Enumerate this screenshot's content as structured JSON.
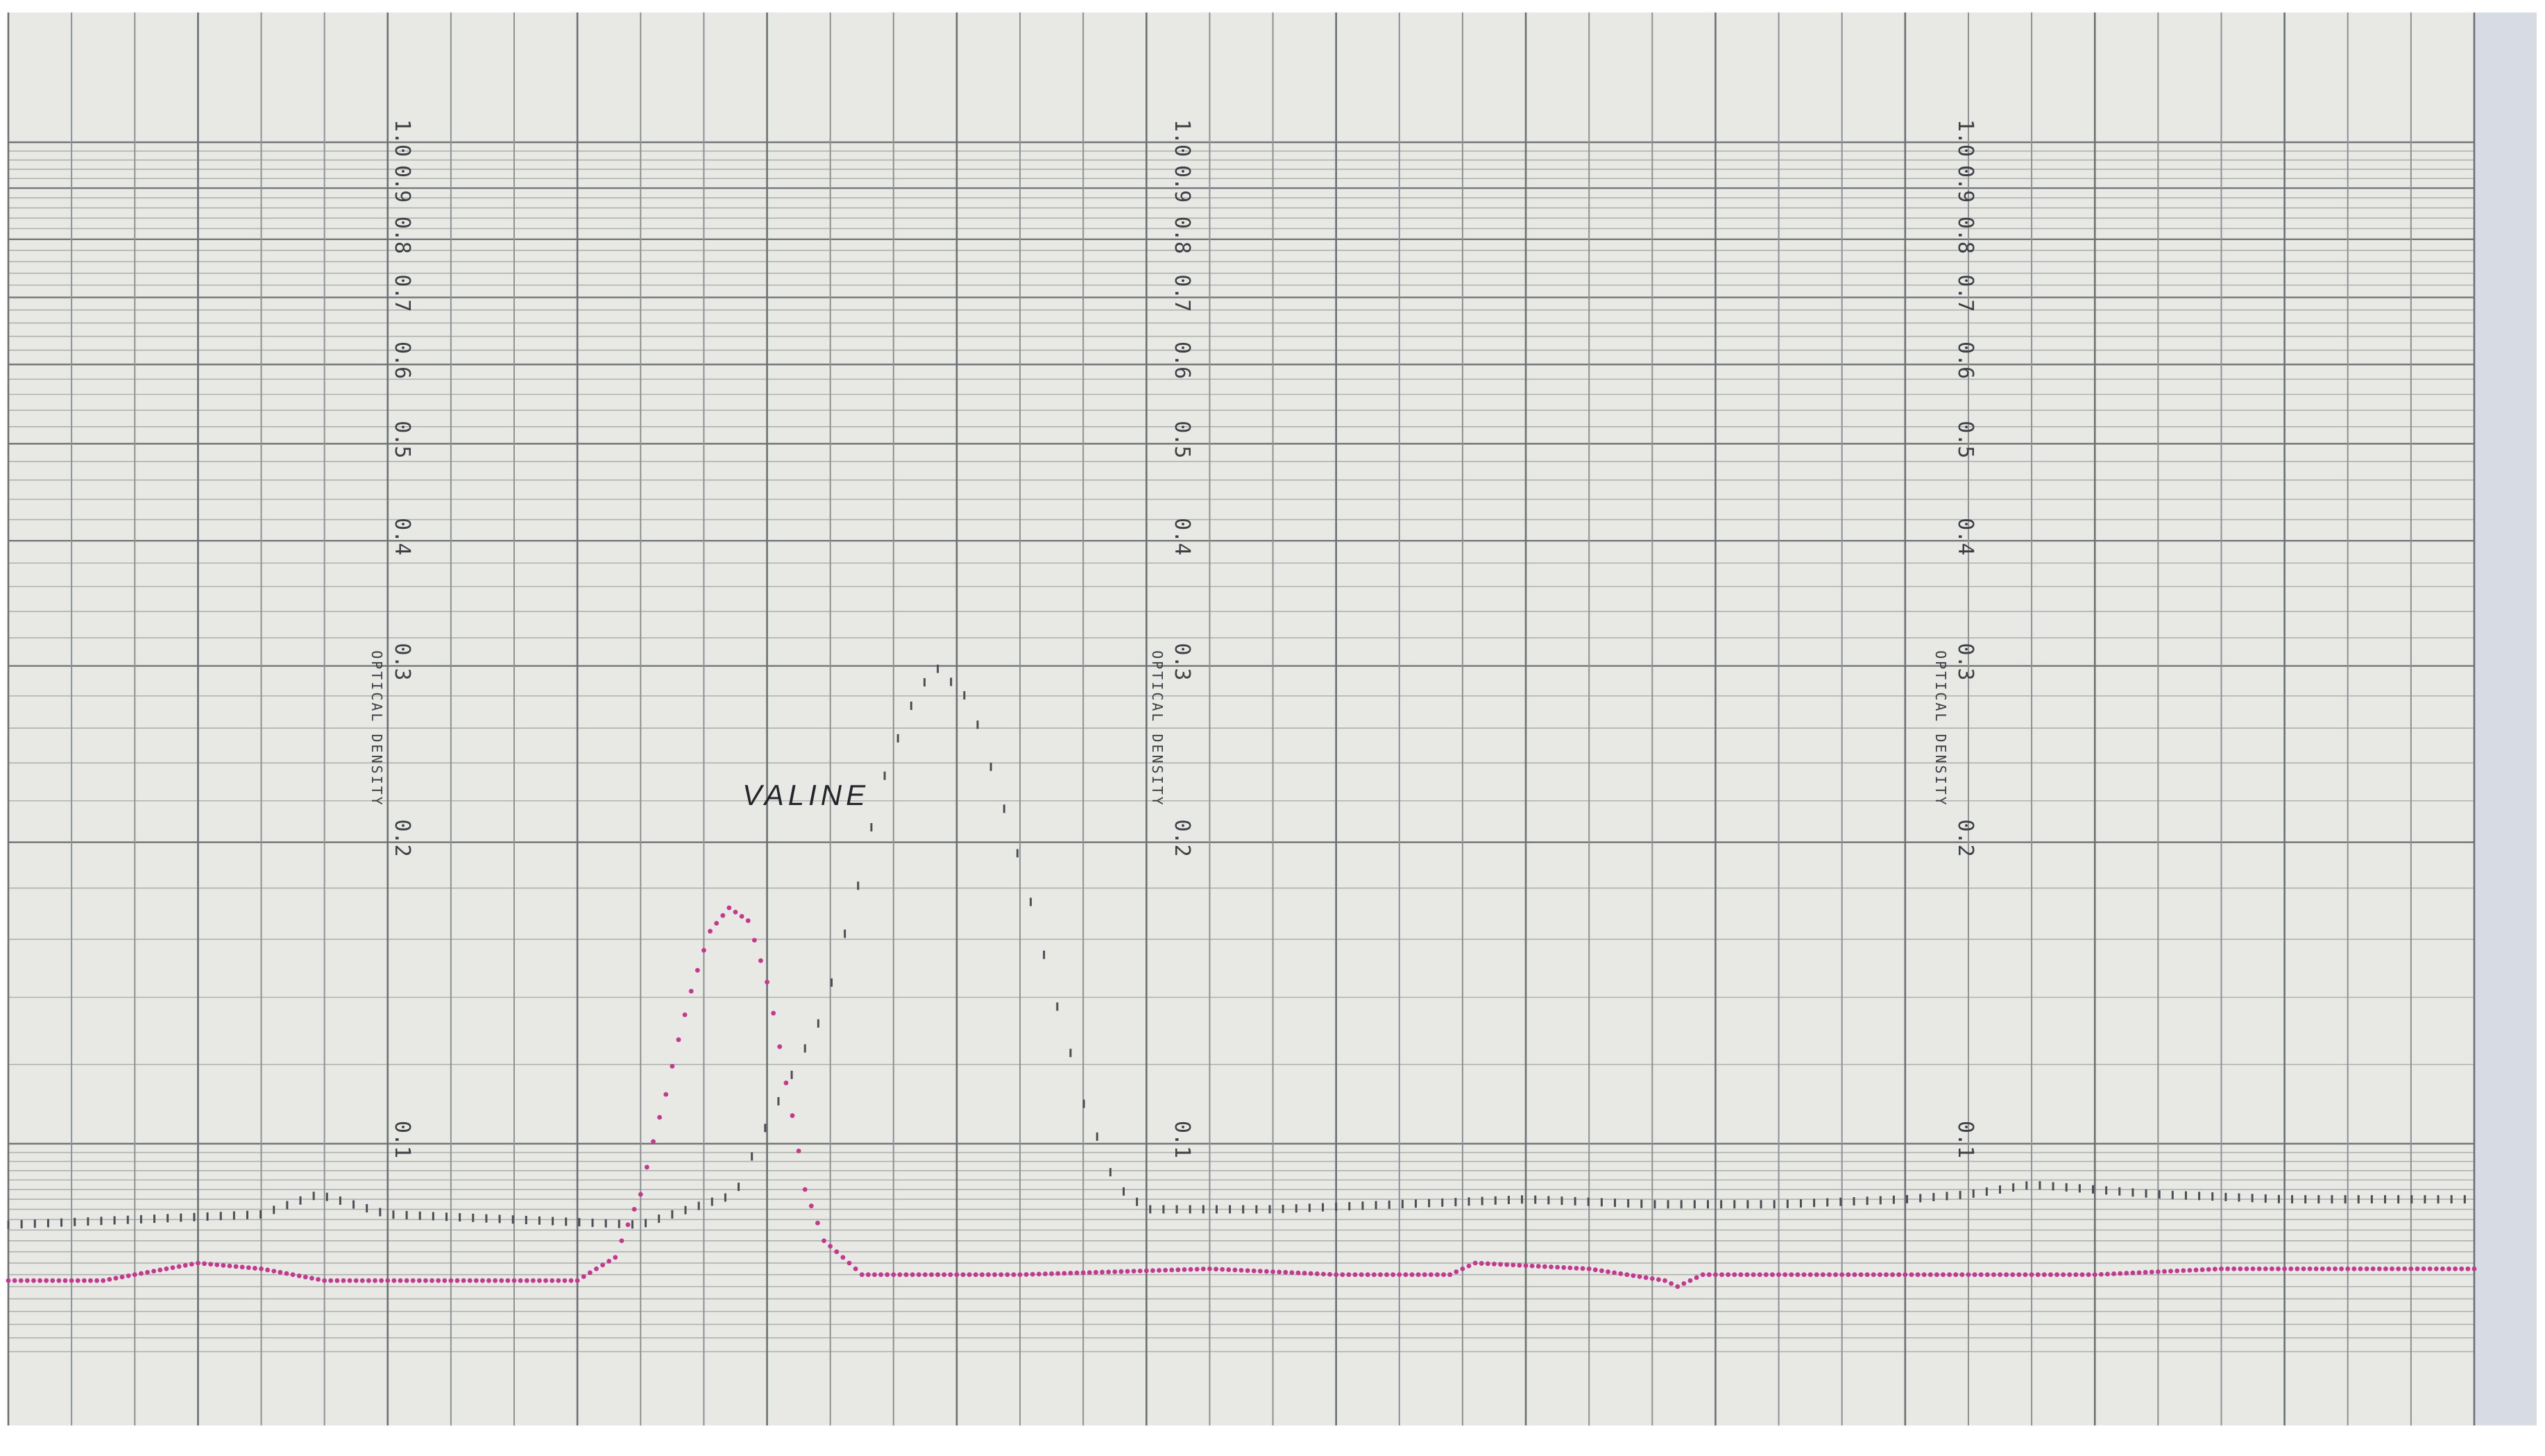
{
  "chart_data": {
    "type": "line",
    "title": "",
    "annotation": "VALINE",
    "ylabel": "OPTICAL DENSITY",
    "y_tick_labels": [
      "1.0",
      "0.9",
      "0.8",
      "0.7",
      "0.6",
      "0.5",
      "0.4",
      "0.3",
      "0.2",
      "0.1"
    ],
    "y_scale": "log",
    "ylim": [
      0.065,
      1.0
    ],
    "x_unit": "chart grid columns",
    "xlim": [
      0,
      39
    ],
    "grid": true,
    "legend": "none",
    "series": [
      {
        "color": "#4b4e55",
        "marker": "tick",
        "x": [
          0,
          2,
          4,
          4.9,
          6,
          8,
          10,
          11.5,
          12.3,
          12.9,
          13.4,
          13.9,
          14.4,
          14.7,
          15.2,
          15.6,
          16.1,
          16.5,
          17.0,
          17.5,
          18,
          20,
          22,
          24,
          26,
          28,
          30,
          31,
          32,
          34,
          36,
          38,
          39
        ],
        "values": [
          0.083,
          0.084,
          0.085,
          0.089,
          0.085,
          0.084,
          0.083,
          0.089,
          0.114,
          0.135,
          0.176,
          0.238,
          0.285,
          0.298,
          0.277,
          0.231,
          0.181,
          0.143,
          0.11,
          0.091,
          0.086,
          0.086,
          0.087,
          0.088,
          0.087,
          0.087,
          0.088,
          0.089,
          0.091,
          0.089,
          0.088,
          0.088,
          0.088
        ]
      },
      {
        "color": "#c2398f",
        "marker": "dot",
        "x": [
          0,
          1.5,
          3,
          4,
          5,
          7,
          9,
          9.6,
          10,
          10.4,
          10.8,
          11.1,
          11.4,
          11.7,
          12.0,
          12.3,
          12.6,
          12.9,
          13.5,
          14,
          16,
          19,
          21,
          22.8,
          23.2,
          25,
          26.2,
          26.4,
          26.8,
          29,
          31,
          33,
          35,
          37,
          39
        ],
        "values": [
          0.073,
          0.073,
          0.076,
          0.075,
          0.073,
          0.073,
          0.073,
          0.077,
          0.089,
          0.112,
          0.142,
          0.163,
          0.172,
          0.167,
          0.145,
          0.115,
          0.09,
          0.08,
          0.074,
          0.074,
          0.074,
          0.075,
          0.074,
          0.074,
          0.076,
          0.075,
          0.073,
          0.072,
          0.074,
          0.074,
          0.074,
          0.074,
          0.075,
          0.075,
          0.075
        ]
      }
    ]
  }
}
